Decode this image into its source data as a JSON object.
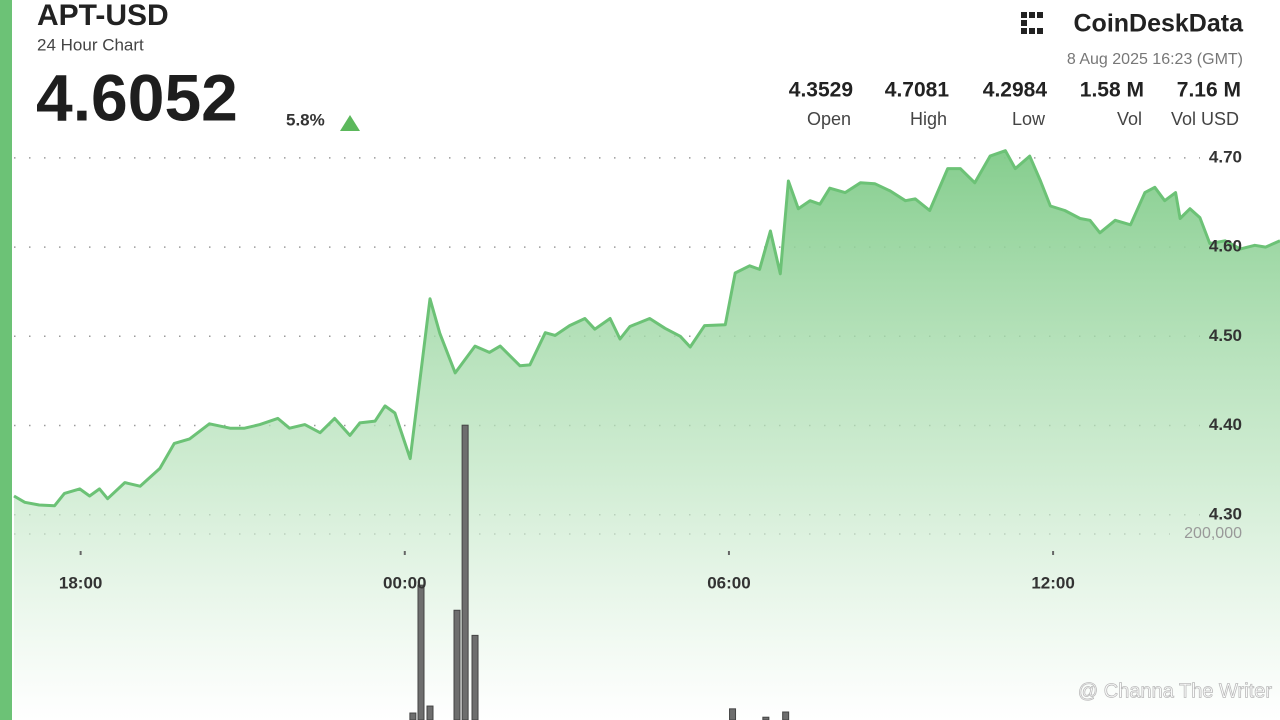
{
  "chart_data": {
    "type": "line",
    "title": "APT-USD",
    "subtitle": "24 Hour Chart",
    "price": "4.6052",
    "change": "5.8%",
    "brand": "CoinDeskData",
    "timestamp": "8 Aug 2025 16:23 (GMT)",
    "stats": [
      {
        "value": "4.3529",
        "label": "Open"
      },
      {
        "value": "4.7081",
        "label": "High"
      },
      {
        "value": "4.2984",
        "label": "Low"
      },
      {
        "value": "1.58 M",
        "label": "Vol"
      },
      {
        "value": "7.16 M",
        "label": "Vol USD"
      }
    ],
    "watermark": "@ Channa The Writer",
    "xlim": [
      "16:46",
      "16:12"
    ],
    "xticks": [
      "18:00",
      "00:00",
      "06:00",
      "12:00"
    ],
    "ylim": [
      4.07,
      4.72
    ],
    "yticks": [
      {
        "value": 4.3,
        "label": "4.30"
      },
      {
        "value": 4.4,
        "label": "4.40"
      },
      {
        "value": 4.5,
        "label": "4.50"
      },
      {
        "value": 4.6,
        "label": "4.60"
      },
      {
        "value": 4.7,
        "label": "4.70"
      }
    ],
    "y2lim": [
      0,
      400000
    ],
    "y2ticks": [
      {
        "value": 200000,
        "label": "200,000"
      }
    ],
    "grid": true,
    "series": [
      {
        "name": "Price",
        "color": "#6cc276",
        "x": [
          "16:46",
          "16:58",
          "17:14",
          "17:31",
          "17:42",
          "17:59",
          "18:10",
          "18:21",
          "18:30",
          "18:49",
          "19:06",
          "19:28",
          "19:44",
          "20:01",
          "20:23",
          "20:46",
          "21:02",
          "21:19",
          "21:39",
          "21:52",
          "22:09",
          "22:26",
          "22:42",
          "22:59",
          "23:10",
          "23:27",
          "23:38",
          "23:49",
          "00:06",
          "00:28",
          "00:39",
          "00:56",
          "01:18",
          "01:34",
          "01:46",
          "02:08",
          "02:19",
          "02:36",
          "02:47",
          "03:03",
          "03:20",
          "03:31",
          "03:48",
          "03:59",
          "04:10",
          "04:32",
          "04:49",
          "05:06",
          "05:17",
          "05:33",
          "05:56",
          "06:07",
          "06:23",
          "06:34",
          "06:46",
          "06:57",
          "07:06",
          "07:17",
          "07:30",
          "07:41",
          "07:52",
          "08:09",
          "08:26",
          "08:42",
          "08:59",
          "09:16",
          "09:27",
          "09:43",
          "10:03",
          "10:17",
          "10:33",
          "10:50",
          "11:07",
          "11:18",
          "11:34",
          "11:46",
          "11:57",
          "12:13",
          "12:30",
          "12:41",
          "12:52",
          "13:09",
          "13:26",
          "13:42",
          "13:53",
          "14:04",
          "14:16",
          "14:21",
          "14:32",
          "14:43",
          "14:54",
          "15:11",
          "15:28",
          "15:44",
          "15:56",
          "16:12"
        ],
        "values": [
          4.321,
          4.314,
          4.311,
          4.31,
          4.324,
          4.329,
          4.321,
          4.329,
          4.318,
          4.336,
          4.332,
          4.352,
          4.38,
          4.385,
          4.402,
          4.397,
          4.397,
          4.401,
          4.408,
          4.397,
          4.401,
          4.392,
          4.408,
          4.389,
          4.403,
          4.405,
          4.422,
          4.414,
          4.363,
          4.542,
          4.503,
          4.459,
          4.489,
          4.482,
          4.489,
          4.467,
          4.468,
          4.504,
          4.501,
          4.512,
          4.52,
          4.508,
          4.52,
          4.497,
          4.511,
          4.52,
          4.509,
          4.5,
          4.488,
          4.512,
          4.513,
          4.571,
          4.579,
          4.575,
          4.618,
          4.57,
          4.674,
          4.643,
          4.652,
          4.648,
          4.666,
          4.661,
          4.672,
          4.671,
          4.663,
          4.652,
          4.654,
          4.641,
          4.688,
          4.688,
          4.672,
          4.702,
          4.708,
          4.688,
          4.702,
          4.674,
          4.646,
          4.641,
          4.632,
          4.63,
          4.616,
          4.63,
          4.625,
          4.661,
          4.667,
          4.652,
          4.661,
          4.632,
          4.643,
          4.633,
          4.604,
          4.607,
          4.598,
          4.602,
          4.6,
          4.607
        ]
      },
      {
        "name": "Volume",
        "color": "#6e6e6e",
        "axis": "y2",
        "x": [
          "00:09",
          "00:18",
          "00:28",
          "00:58",
          "01:07",
          "01:18",
          "06:04",
          "06:41",
          "07:03"
        ],
        "values": [
          7500,
          145000,
          15000,
          118000,
          317000,
          91000,
          12000,
          3000,
          8600
        ]
      }
    ]
  }
}
